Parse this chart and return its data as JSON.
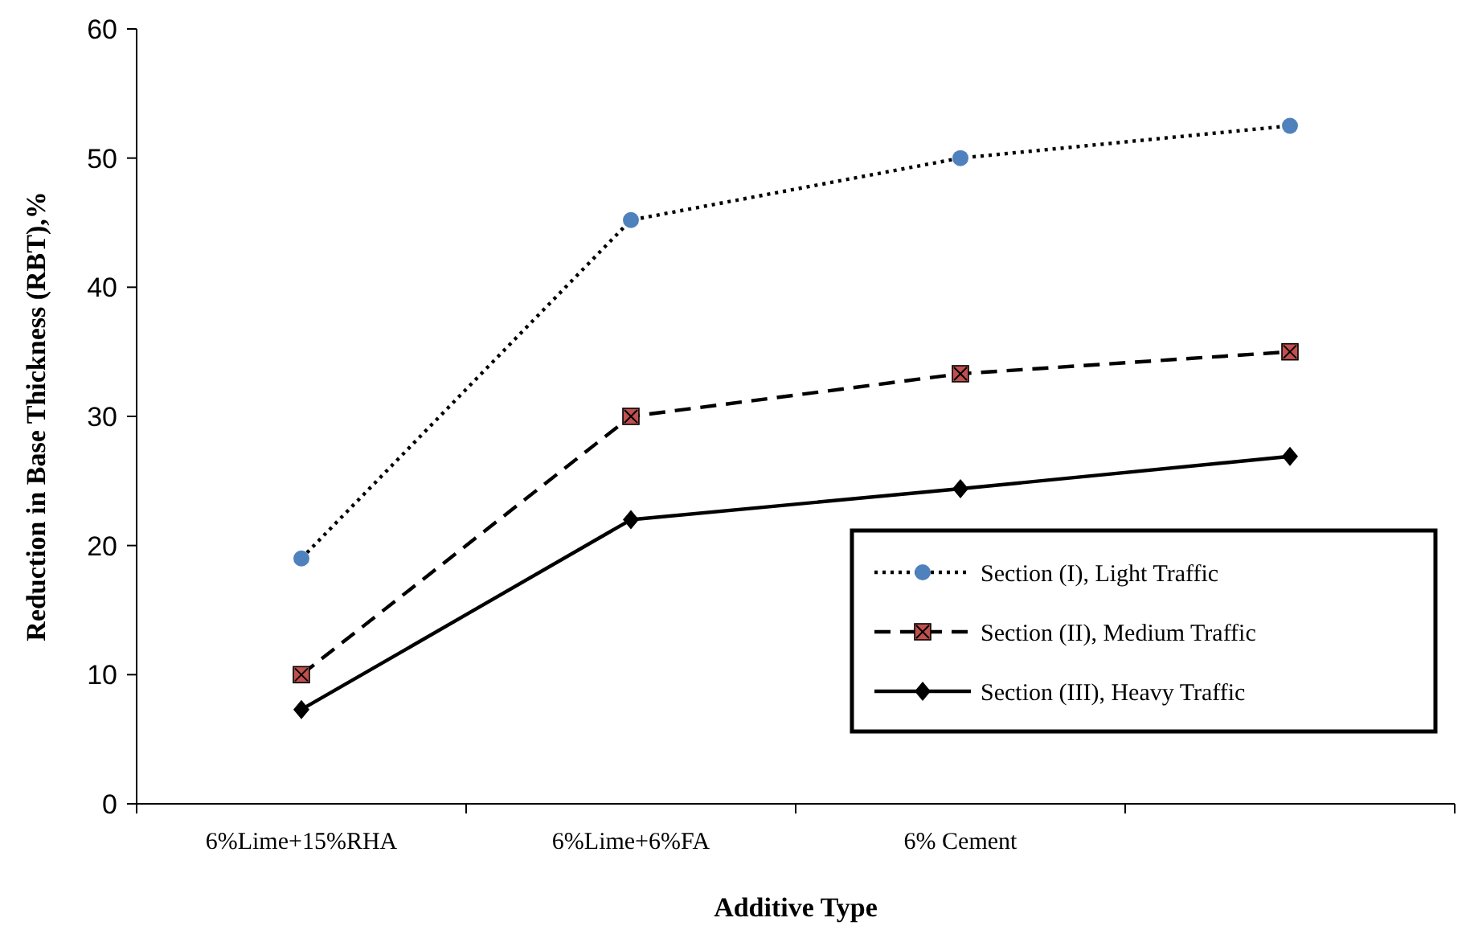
{
  "chart_data": {
    "type": "line",
    "xlabel": "Additive Type",
    "ylabel": "Reduction in Base Thickness (RBT),%",
    "categories": [
      "6%Lime+15%RHA",
      "6%Lime+6%FA",
      "6% Cement",
      null
    ],
    "ylim": [
      0,
      60
    ],
    "yticks": [
      0,
      10,
      20,
      30,
      40,
      50,
      60
    ],
    "grid": false,
    "legend": "bottom right",
    "series": [
      {
        "name": "Section (I), Light Traffic",
        "color": "#4f81bd",
        "values": [
          19,
          45.2,
          50,
          52.5
        ],
        "marker": "circle",
        "line_style": "dotted"
      },
      {
        "name": "Section (II), Medium Traffic",
        "color": "#c0504d",
        "values": [
          10,
          30,
          33.3,
          35
        ],
        "marker": "square",
        "line_style": "dashed"
      },
      {
        "name": "Section (III), Heavy Traffic",
        "color": "#000000",
        "values": [
          7.3,
          22,
          24.4,
          26.9
        ],
        "marker": "diamond",
        "line_style": "solid"
      }
    ]
  }
}
